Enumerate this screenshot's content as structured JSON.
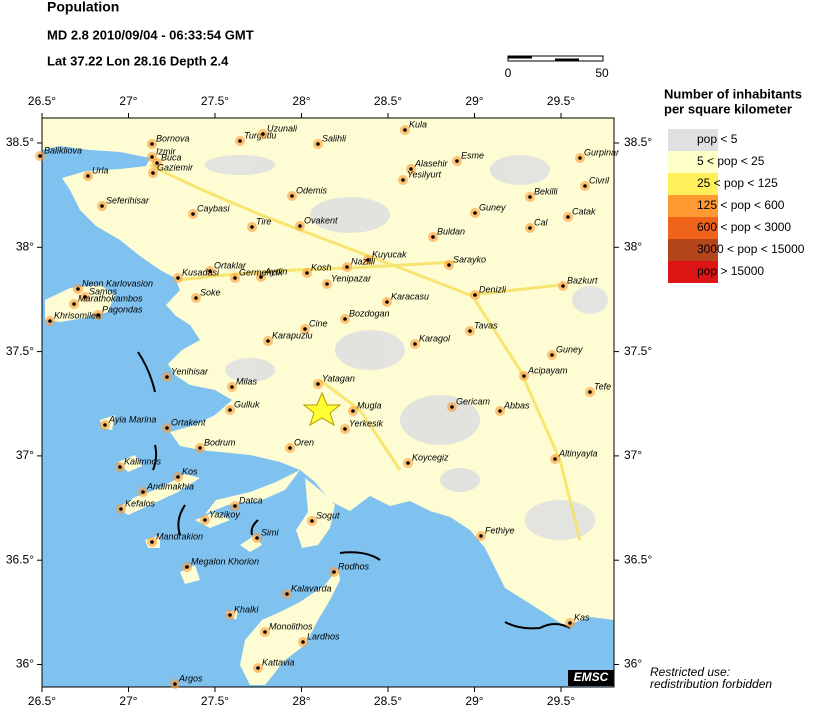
{
  "header": {
    "title": "Population",
    "event": "MD 2.8  2010/09/04 - 06:33:54 GMT",
    "location": "Lat 37.22   Lon 28.16   Depth  2.4"
  },
  "scale_bar": {
    "start": "0",
    "end": "50"
  },
  "map": {
    "lon_ticks": [
      {
        "value": 26.5,
        "label": "26.5°"
      },
      {
        "value": 27,
        "label": "27°"
      },
      {
        "value": 27.5,
        "label": "27.5°"
      },
      {
        "value": 28,
        "label": "28°"
      },
      {
        "value": 28.5,
        "label": "28.5°"
      },
      {
        "value": 29,
        "label": "29°"
      },
      {
        "value": 29.5,
        "label": "29.5°"
      }
    ],
    "lat_ticks": [
      {
        "value": 38.5,
        "label": "38.5°"
      },
      {
        "value": 38,
        "label": "38°"
      },
      {
        "value": 37.5,
        "label": "37.5°"
      },
      {
        "value": 37,
        "label": "37°"
      },
      {
        "value": 36.5,
        "label": "36.5°"
      },
      {
        "value": 36,
        "label": "36°"
      }
    ],
    "credit": "EMSC",
    "cities": [
      "Bornova",
      "Izmir",
      "Buca",
      "Gaziemir",
      "Balikliova",
      "Urla",
      "Seferihisar",
      "Caybasi",
      "Tire",
      "Odemis",
      "Ovakent",
      "Turgutlu",
      "Uzunali",
      "Salihli",
      "Kula",
      "Alasehir",
      "Esme",
      "Yesilyurt",
      "Gurpinar",
      "Bekilli",
      "Civril",
      "Guney",
      "Cal",
      "Catak",
      "Buldan",
      "Sarayko",
      "Denizli",
      "Bazkurt",
      "Kuyucak",
      "Nazilli",
      "Kosh",
      "Yenipazar",
      "Aydin",
      "Germencik",
      "Ortaklar",
      "Kusadasi",
      "Soke",
      "Karacasu",
      "Bozdogan",
      "Cine",
      "Karapuzlu",
      "Karagol",
      "Tavas",
      "Guney",
      "Acipayam",
      "Tefe",
      "Yenihisar",
      "Milas",
      "Yatagan",
      "Mugla",
      "Yerkesik",
      "Gericam",
      "Abbas",
      "Gulluk",
      "Ortakent",
      "Bodrum",
      "Oren",
      "Koycegiz",
      "Altinyayla",
      "Ayia Marina",
      "Kalimnos",
      "Kos",
      "Andimakhia",
      "Kefalos",
      "Datca",
      "Yazikoy",
      "Mandrakion",
      "Simi",
      "Sogut",
      "Fethiye",
      "Megalon Khorion",
      "Rodhos",
      "Kalavarda",
      "Khalki",
      "Monolithos",
      "Lardhos",
      "Kattavia",
      "Argos",
      "Kas",
      "Neon Karlovasion",
      "Samos",
      "Marathokambos",
      "Pagondas",
      "Khrisomilea"
    ]
  },
  "legend": {
    "title": [
      "Number of inhabitants",
      "per square kilometer"
    ],
    "items": [
      {
        "label": "pop < 5",
        "color": "#e0e0e0"
      },
      {
        "label": "5 < pop < 25",
        "color": "#ffffc8"
      },
      {
        "label": "25 < pop < 125",
        "color": "#fff05a"
      },
      {
        "label": "125 < pop < 600",
        "color": "#ff9a32"
      },
      {
        "label": "600 < pop < 3000",
        "color": "#f06419"
      },
      {
        "label": "3000 < pop < 15000",
        "color": "#b4461e"
      },
      {
        "label": "pop > 15000",
        "color": "#dc1414"
      }
    ]
  },
  "note": [
    "Restricted use:",
    "redistribution forbidden"
  ]
}
